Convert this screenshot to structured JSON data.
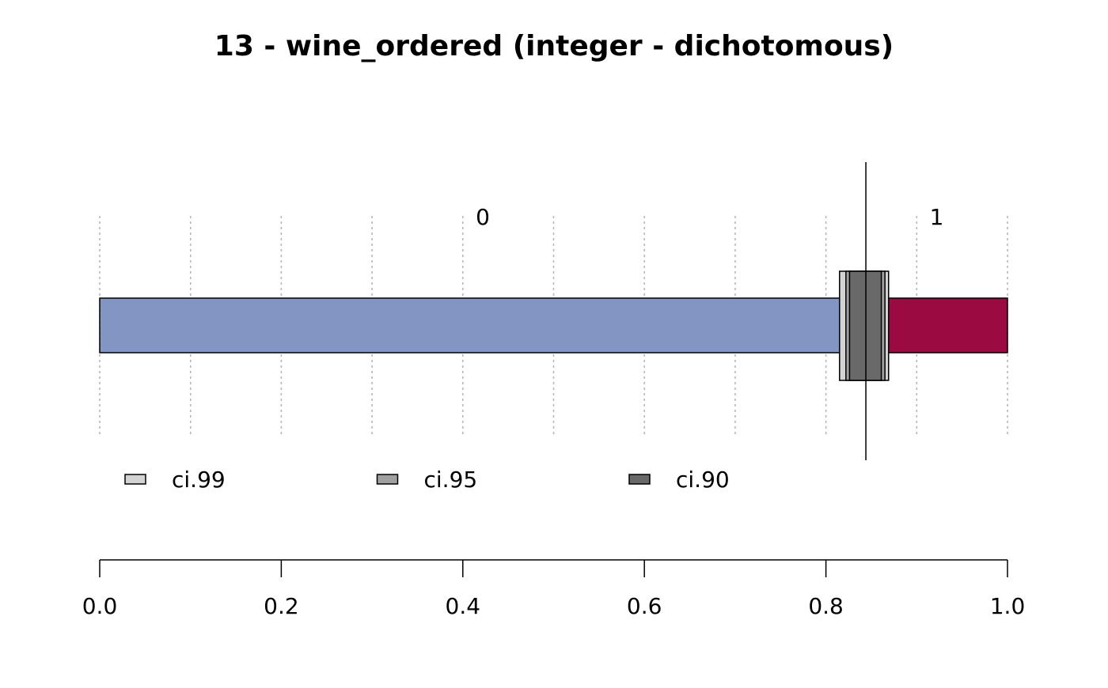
{
  "chart_data": {
    "type": "stacked-bar",
    "title": "13 - wine_ordered (integer - dichotomous)",
    "categories": [
      "0",
      "1"
    ],
    "values": [
      0.844,
      0.156
    ],
    "colors": [
      "#8396c3",
      "#9b0a41"
    ],
    "mean": 0.844,
    "ci": [
      {
        "name": "ci.99",
        "color": "#d3d3d3",
        "low": 0.815,
        "high": 0.869
      },
      {
        "name": "ci.95",
        "color": "#a0a0a0",
        "low": 0.822,
        "high": 0.865
      },
      {
        "name": "ci.90",
        "color": "#696969",
        "low": 0.826,
        "high": 0.861
      }
    ],
    "xlim": [
      0,
      1
    ],
    "xticks": [
      {
        "value": 0,
        "label": "0.0"
      },
      {
        "value": 0.2,
        "label": "0.2"
      },
      {
        "value": 0.4,
        "label": "0.4"
      },
      {
        "value": 0.6,
        "label": "0.6"
      },
      {
        "value": 0.8,
        "label": "0.8"
      },
      {
        "value": 1,
        "label": "1.0"
      }
    ],
    "xgrid": [
      0,
      0.1,
      0.2,
      0.3,
      0.4,
      0.5,
      0.6,
      0.7,
      0.8,
      0.9,
      1
    ],
    "grid": true
  }
}
